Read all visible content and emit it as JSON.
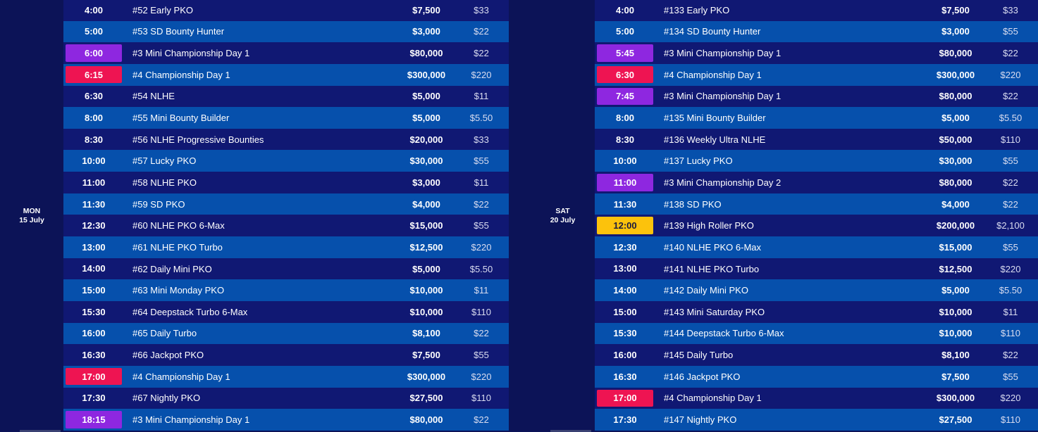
{
  "colors": {
    "background": "#0c1357",
    "row_dark": "#101873",
    "row_light": "#0650ac",
    "mini_championship": "#8e27e0",
    "championship": "#ee1452",
    "high_roller": "#fcc20c"
  },
  "schedules": [
    {
      "day": "MON",
      "date": "15 July",
      "rows": [
        {
          "time": "4:00",
          "event": "#52 Early PKO",
          "prize": "$7,500",
          "buyin": "$33",
          "highlight": "none"
        },
        {
          "time": "5:00",
          "event": "#53 SD Bounty Hunter",
          "prize": "$3,000",
          "buyin": "$22",
          "highlight": "none"
        },
        {
          "time": "6:00",
          "event": "#3 Mini Championship Day 1",
          "prize": "$80,000",
          "buyin": "$22",
          "highlight": "purple"
        },
        {
          "time": "6:15",
          "event": "#4 Championship Day 1",
          "prize": "$300,000",
          "buyin": "$220",
          "highlight": "red"
        },
        {
          "time": "6:30",
          "event": "#54 NLHE",
          "prize": "$5,000",
          "buyin": "$11",
          "highlight": "none"
        },
        {
          "time": "8:00",
          "event": "#55 Mini Bounty Builder",
          "prize": "$5,000",
          "buyin": "$5.50",
          "highlight": "none"
        },
        {
          "time": "8:30",
          "event": "#56 NLHE Progressive Bounties",
          "prize": "$20,000",
          "buyin": "$33",
          "highlight": "none"
        },
        {
          "time": "10:00",
          "event": "#57 Lucky PKO",
          "prize": "$30,000",
          "buyin": "$55",
          "highlight": "none"
        },
        {
          "time": "11:00",
          "event": "#58 NLHE PKO",
          "prize": "$3,000",
          "buyin": "$11",
          "highlight": "none"
        },
        {
          "time": "11:30",
          "event": "#59 SD PKO",
          "prize": "$4,000",
          "buyin": "$22",
          "highlight": "none"
        },
        {
          "time": "12:30",
          "event": "#60 NLHE PKO 6-Max",
          "prize": "$15,000",
          "buyin": "$55",
          "highlight": "none"
        },
        {
          "time": "13:00",
          "event": "#61 NLHE PKO Turbo",
          "prize": "$12,500",
          "buyin": "$220",
          "highlight": "none"
        },
        {
          "time": "14:00",
          "event": "#62 Daily Mini PKO",
          "prize": "$5,000",
          "buyin": "$5.50",
          "highlight": "none"
        },
        {
          "time": "15:00",
          "event": "#63 Mini Monday PKO",
          "prize": "$10,000",
          "buyin": "$11",
          "highlight": "none"
        },
        {
          "time": "15:30",
          "event": "#64 Deepstack Turbo 6-Max",
          "prize": "$10,000",
          "buyin": "$110",
          "highlight": "none"
        },
        {
          "time": "16:00",
          "event": "#65 Daily Turbo",
          "prize": "$8,100",
          "buyin": "$22",
          "highlight": "none"
        },
        {
          "time": "16:30",
          "event": "#66 Jackpot PKO",
          "prize": "$7,500",
          "buyin": "$55",
          "highlight": "none"
        },
        {
          "time": "17:00",
          "event": "#4 Championship Day 1",
          "prize": "$300,000",
          "buyin": "$220",
          "highlight": "red"
        },
        {
          "time": "17:30",
          "event": "#67 Nightly PKO",
          "prize": "$27,500",
          "buyin": "$110",
          "highlight": "none"
        },
        {
          "time": "18:15",
          "event": "#3 Mini Championship Day 1",
          "prize": "$80,000",
          "buyin": "$22",
          "highlight": "purple"
        }
      ]
    },
    {
      "day": "SAT",
      "date": "20 July",
      "rows": [
        {
          "time": "4:00",
          "event": "#133 Early PKO",
          "prize": "$7,500",
          "buyin": "$33",
          "highlight": "none"
        },
        {
          "time": "5:00",
          "event": "#134 SD Bounty Hunter",
          "prize": "$3,000",
          "buyin": "$55",
          "highlight": "none"
        },
        {
          "time": "5:45",
          "event": "#3 Mini Championship Day 1",
          "prize": "$80,000",
          "buyin": "$22",
          "highlight": "purple"
        },
        {
          "time": "6:30",
          "event": "#4 Championship Day 1",
          "prize": "$300,000",
          "buyin": "$220",
          "highlight": "red"
        },
        {
          "time": "7:45",
          "event": "#3 Mini Championship Day 1",
          "prize": "$80,000",
          "buyin": "$22",
          "highlight": "purple"
        },
        {
          "time": "8:00",
          "event": "#135 Mini Bounty Builder",
          "prize": "$5,000",
          "buyin": "$5.50",
          "highlight": "none"
        },
        {
          "time": "8:30",
          "event": "#136 Weekly Ultra NLHE",
          "prize": "$50,000",
          "buyin": "$110",
          "highlight": "none"
        },
        {
          "time": "10:00",
          "event": "#137 Lucky PKO",
          "prize": "$30,000",
          "buyin": "$55",
          "highlight": "none"
        },
        {
          "time": "11:00",
          "event": "#3 Mini Championship Day 2",
          "prize": "$80,000",
          "buyin": "$22",
          "highlight": "purple"
        },
        {
          "time": "11:30",
          "event": "#138 SD PKO",
          "prize": "$4,000",
          "buyin": "$22",
          "highlight": "none"
        },
        {
          "time": "12:00",
          "event": "#139 High Roller PKO",
          "prize": "$200,000",
          "buyin": "$2,100",
          "highlight": "yellow"
        },
        {
          "time": "12:30",
          "event": "#140 NLHE PKO 6-Max",
          "prize": "$15,000",
          "buyin": "$55",
          "highlight": "none"
        },
        {
          "time": "13:00",
          "event": "#141 NLHE PKO Turbo",
          "prize": "$12,500",
          "buyin": "$220",
          "highlight": "none"
        },
        {
          "time": "14:00",
          "event": "#142 Daily Mini PKO",
          "prize": "$5,000",
          "buyin": "$5.50",
          "highlight": "none"
        },
        {
          "time": "15:00",
          "event": "#143 Mini Saturday PKO",
          "prize": "$10,000",
          "buyin": "$11",
          "highlight": "none"
        },
        {
          "time": "15:30",
          "event": "#144 Deepstack Turbo 6-Max",
          "prize": "$10,000",
          "buyin": "$110",
          "highlight": "none"
        },
        {
          "time": "16:00",
          "event": "#145 Daily Turbo",
          "prize": "$8,100",
          "buyin": "$22",
          "highlight": "none"
        },
        {
          "time": "16:30",
          "event": "#146 Jackpot PKO",
          "prize": "$7,500",
          "buyin": "$55",
          "highlight": "none"
        },
        {
          "time": "17:00",
          "event": "#4 Championship Day 1",
          "prize": "$300,000",
          "buyin": "$220",
          "highlight": "red"
        },
        {
          "time": "17:30",
          "event": "#147 Nightly PKO",
          "prize": "$27,500",
          "buyin": "$110",
          "highlight": "none"
        }
      ]
    }
  ]
}
